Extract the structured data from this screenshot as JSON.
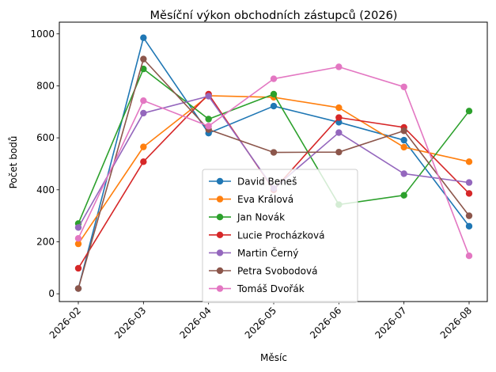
{
  "chart_data": {
    "type": "line",
    "title": "Měsíční výkon obchodních zástupců (2026)",
    "xlabel": "Měsíc",
    "ylabel": "Počet bodů",
    "categories": [
      "2026-02",
      "2026-03",
      "2026-04",
      "2026-05",
      "2026-06",
      "2026-07",
      "2026-08"
    ],
    "ylim": [
      -30,
      1045
    ],
    "yticks": [
      0,
      200,
      400,
      600,
      800,
      1000
    ],
    "grid": false,
    "legend_position": "lower center",
    "series": [
      {
        "name": "David Beneš",
        "color": "#1f77b4",
        "values": [
          20,
          985,
          618,
          722,
          660,
          591,
          260
        ]
      },
      {
        "name": "Eva Králová",
        "color": "#ff7f0e",
        "values": [
          192,
          565,
          762,
          756,
          716,
          564,
          508
        ]
      },
      {
        "name": "Jan Novák",
        "color": "#2ca02c",
        "values": [
          270,
          865,
          672,
          768,
          343,
          379,
          703
        ]
      },
      {
        "name": "Lucie Procházková",
        "color": "#d62728",
        "values": [
          98,
          508,
          768,
          400,
          678,
          640,
          386
        ]
      },
      {
        "name": "Martin Černý",
        "color": "#9467bd",
        "values": [
          255,
          695,
          760,
          405,
          620,
          462,
          428
        ]
      },
      {
        "name": "Petra Svobodová",
        "color": "#8c564b",
        "values": [
          20,
          903,
          632,
          544,
          545,
          627,
          300
        ]
      },
      {
        "name": "Tomáš Dvořák",
        "color": "#e377c2",
        "values": [
          213,
          743,
          645,
          827,
          873,
          796,
          146
        ]
      }
    ]
  }
}
